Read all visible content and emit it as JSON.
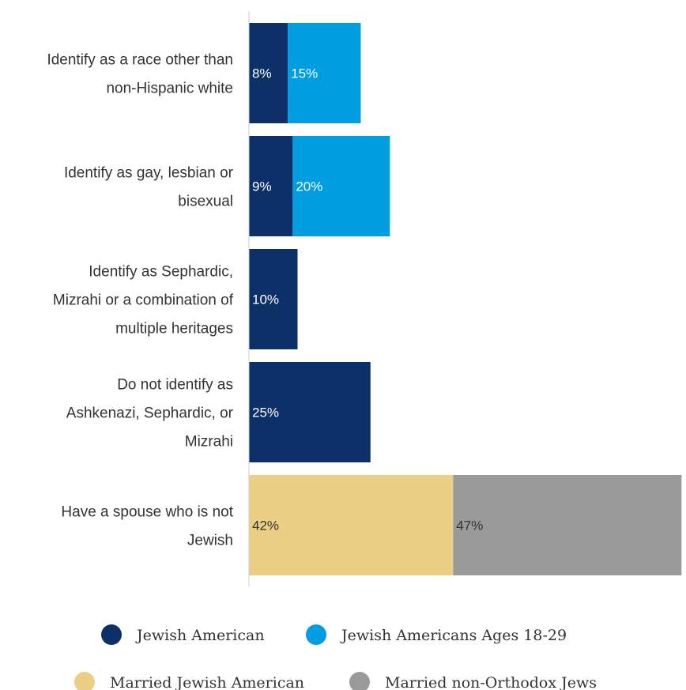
{
  "chart_data": {
    "type": "bar",
    "orientation": "horizontal",
    "stacked": true,
    "categories": [
      "Identify as a race other than non-Hispanic white",
      "Identify as gay, lesbian or bisexual",
      "Identify as Sephardic, Mizrahi or a combination of multiple heritages",
      "Do not identify as Ashkenazi, Sephardic, or Mizrahi",
      "Have a spouse who is not Jewish"
    ],
    "category_lines": [
      [
        "Identify as a race other than",
        "non-Hispanic white"
      ],
      [
        "Identify as gay, lesbian or",
        "bisexual"
      ],
      [
        "Identify as Sephardic,",
        "Mizrahi or a combination of",
        "multiple heritages"
      ],
      [
        "Do not identify as",
        "Ashkenazi, Sephardic, or",
        "Mizrahi"
      ],
      [
        "Have a spouse who is not",
        "Jewish"
      ]
    ],
    "series": [
      {
        "name": "Jewish American",
        "color": "#0d3069",
        "label_color": "#ffffff",
        "values": [
          8,
          9,
          10,
          25,
          null
        ]
      },
      {
        "name": "Jewish Americans Ages 18-29",
        "color": "#009ee0",
        "label_color": "#ffffff",
        "values": [
          15,
          20,
          null,
          null,
          null
        ]
      },
      {
        "name": "Married Jewish American",
        "color": "#ebcf84",
        "label_color": "#333333",
        "values": [
          null,
          null,
          null,
          null,
          42
        ]
      },
      {
        "name": "Married non-Orthodox Jews",
        "color": "#9a9a9a",
        "label_color": "#333333",
        "values": [
          null,
          null,
          null,
          null,
          47
        ]
      }
    ],
    "value_suffix": "%",
    "axis_color": "#cccccc",
    "grid": false,
    "legend_position": "bottom"
  }
}
